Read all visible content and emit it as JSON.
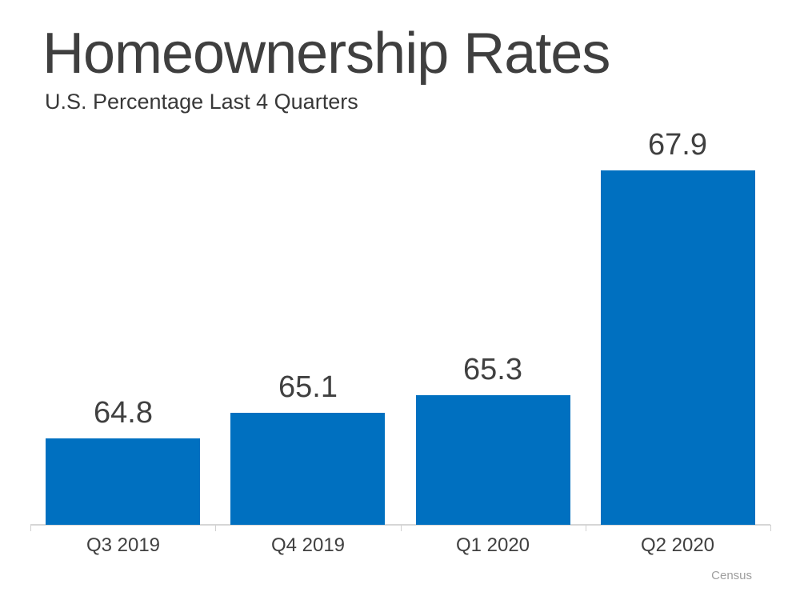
{
  "slide": {
    "title": "Homeownership Rates",
    "subtitle": "U.S. Percentage Last 4 Quarters",
    "source": "Census"
  },
  "chart_data": {
    "type": "bar",
    "title": "Homeownership Rates",
    "subtitle": "U.S. Percentage Last 4 Quarters",
    "categories": [
      "Q3 2019",
      "Q4 2019",
      "Q1 2020",
      "Q2 2020"
    ],
    "values": [
      64.8,
      65.1,
      65.3,
      67.9
    ],
    "value_label_format": "one-decimal",
    "xlabel": "",
    "ylabel": "",
    "ylim": [
      63.8,
      68.5
    ],
    "grid": false,
    "legend": false,
    "bar_color": "#0070C0",
    "label_color": "#404040",
    "axis_color": "#d6d6d6",
    "source": "Census"
  }
}
